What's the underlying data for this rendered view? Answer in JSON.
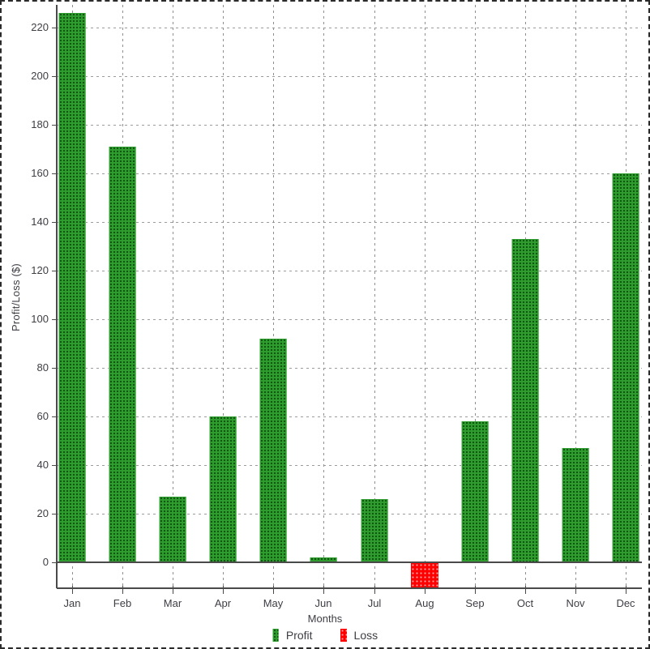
{
  "colors": {
    "profit": "#2e9d2e",
    "profit_dot": "#155915",
    "loss": "#ff0000",
    "loss_dot": "#ffa0a0",
    "grid": "#9c9c9c",
    "axis": "#4a4a4a",
    "text": "#3d3d44",
    "figure_border": "#2b2b2b",
    "background": "#ffffff"
  },
  "chart_data": {
    "type": "bar",
    "title": "",
    "xlabel": "Months",
    "ylabel": "Profit/Loss ($)",
    "categories": [
      "Jan",
      "Feb",
      "Mar",
      "Apr",
      "May",
      "Jun",
      "Jul",
      "Aug",
      "Sep",
      "Oct",
      "Nov",
      "Dec"
    ],
    "series": [
      {
        "name": "Profit/Loss",
        "values": [
          226,
          171,
          27,
          60,
          92,
          2,
          26,
          -10,
          58,
          133,
          47,
          160
        ]
      }
    ],
    "yticks": [
      0,
      20,
      40,
      60,
      80,
      100,
      120,
      140,
      160,
      180,
      200,
      220
    ],
    "ylim": [
      -10.7,
      229.3
    ],
    "grid": "both-dashed",
    "legend": {
      "position": "bottom",
      "entries": [
        {
          "label": "Profit",
          "color": "#2e9d2e"
        },
        {
          "label": "Loss",
          "color": "#ff0000"
        }
      ]
    }
  }
}
